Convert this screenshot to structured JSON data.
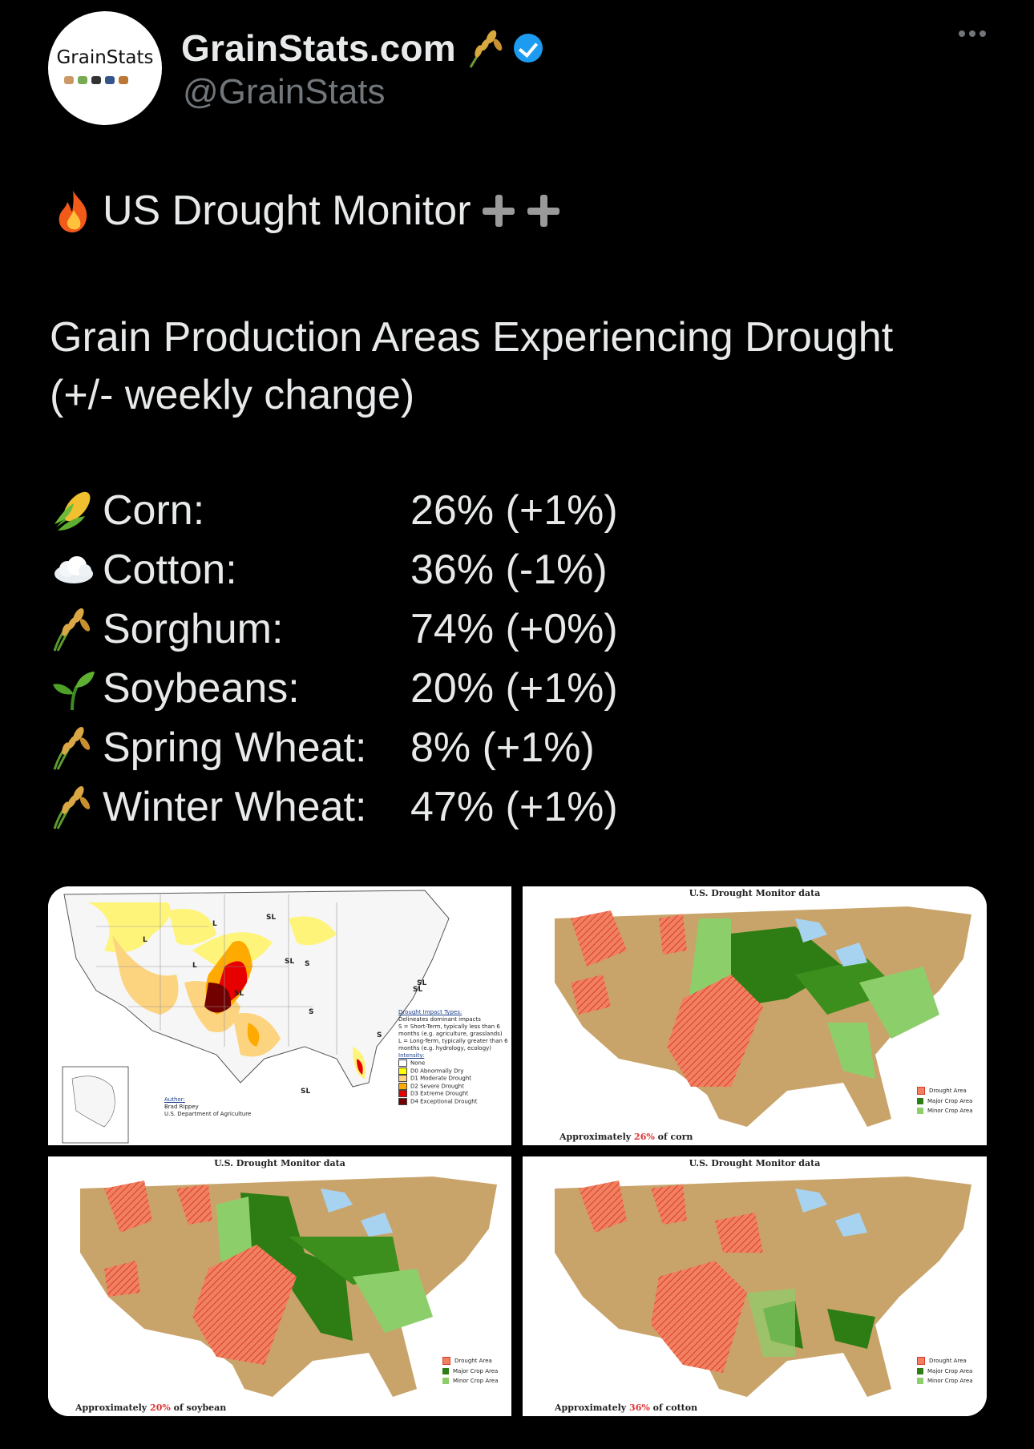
{
  "account": {
    "display_name": "GrainStats.com",
    "handle": "@GrainStats",
    "avatar_text": "GrainStats",
    "verified": true
  },
  "tweet": {
    "headline": "US Drought Monitor",
    "subtitle_line1": "Grain Production Areas Experiencing Drought",
    "subtitle_line2": "(+/- weekly change)",
    "crops": [
      {
        "icon": "corn-icon",
        "name": "Corn:",
        "value": "26% (+1%)"
      },
      {
        "icon": "cloud-icon",
        "name": "Cotton:",
        "value": "36% (-1%)"
      },
      {
        "icon": "sheaf-icon",
        "name": "Sorghum:",
        "value": "74% (+0%)"
      },
      {
        "icon": "seedling-icon",
        "name": "Soybeans:",
        "value": "20% (+1%)"
      },
      {
        "icon": "sheaf-icon",
        "name": "Spring Wheat:",
        "value": "8% (+1%)"
      },
      {
        "icon": "sheaf-icon",
        "name": "Winter Wheat:",
        "value": "47% (+1%)"
      }
    ]
  },
  "media": {
    "drought_map": {
      "labels": [
        "SL",
        "SL",
        "SL",
        "S",
        "SL",
        "SL",
        "L",
        "L",
        "L",
        "S",
        "S",
        "SL"
      ],
      "impact_title": "Drought Impact Types:",
      "impact_items": [
        "Delineates dominant impacts",
        "S = Short-Term, typically less than 6 months (e.g. agriculture, grasslands)",
        "L = Long-Term, typically greater than 6 months (e.g. hydrology, ecology)"
      ],
      "intensity_title": "Intensity:",
      "intensity_items": [
        {
          "label": "None",
          "color": "#ffffff"
        },
        {
          "label": "D0 Abnormally Dry",
          "color": "#ffff00"
        },
        {
          "label": "D1 Moderate Drought",
          "color": "#fcd37f"
        },
        {
          "label": "D2 Severe Drought",
          "color": "#ffaa00"
        },
        {
          "label": "D3 Extreme Drought",
          "color": "#e60000"
        },
        {
          "label": "D4 Exceptional Drought",
          "color": "#730000"
        }
      ],
      "author_label": "Author:",
      "author_name": "Brad Rippey",
      "author_org": "U.S. Department of Agriculture"
    },
    "crop_maps": [
      {
        "title": "U.S. Drought Monitor data",
        "caption_prefix": "Approximately ",
        "pct": "26%",
        "caption_suffix": " of corn"
      },
      {
        "title": "U.S. Drought Monitor data",
        "caption_prefix": "Approximately ",
        "pct": "20%",
        "caption_suffix": " of soybean"
      },
      {
        "title": "U.S. Drought Monitor data",
        "caption_prefix": "Approximately ",
        "pct": "36%",
        "caption_suffix": " of cotton"
      }
    ],
    "crop_legend": [
      "Drought Area",
      "Major Crop Area",
      "Minor Crop Area"
    ],
    "colors": {
      "land": "#c9a46a",
      "drought": "#e2553f",
      "major_crop": "#2e7d14",
      "minor_crop": "#8ccf6a",
      "water": "#a8d3f0"
    }
  }
}
